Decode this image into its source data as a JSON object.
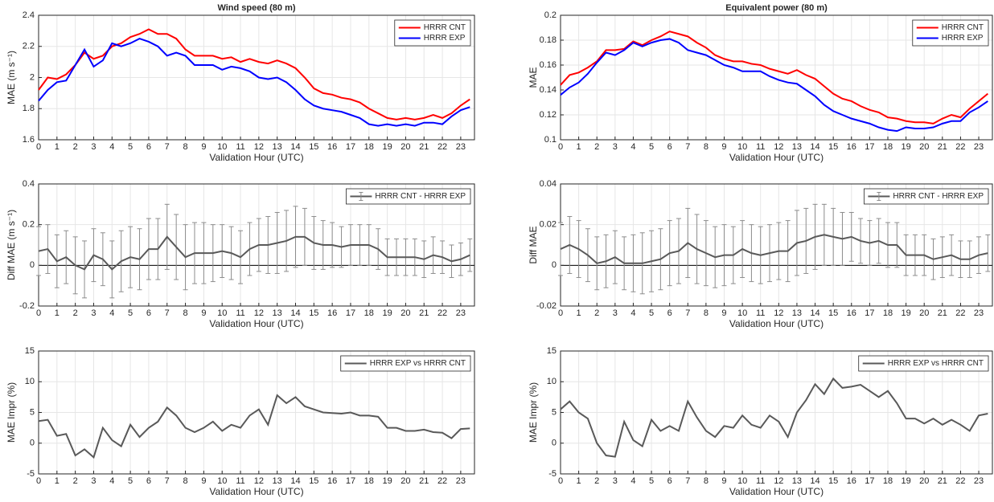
{
  "chart_data": [
    {
      "type": "line",
      "title": "Wind speed (80 m)",
      "x_label": "Validation Hour (UTC)",
      "y_label": "MAE (m s⁻¹)",
      "x": [
        0,
        0.5,
        1,
        1.5,
        2,
        2.5,
        3,
        3.5,
        4,
        4.5,
        5,
        5.5,
        6,
        6.5,
        7,
        7.5,
        8,
        8.5,
        9,
        9.5,
        10,
        10.5,
        11,
        11.5,
        12,
        12.5,
        13,
        13.5,
        14,
        14.5,
        15,
        15.5,
        16,
        16.5,
        17,
        17.5,
        18,
        18.5,
        19,
        19.5,
        20,
        20.5,
        21,
        21.5,
        22,
        22.5,
        23,
        23.5
      ],
      "series": [
        {
          "name": "HRRR CNT",
          "color": "#ff0000",
          "values": [
            1.92,
            2.0,
            1.99,
            2.02,
            2.08,
            2.16,
            2.12,
            2.14,
            2.2,
            2.22,
            2.26,
            2.28,
            2.31,
            2.28,
            2.28,
            2.25,
            2.18,
            2.14,
            2.14,
            2.14,
            2.12,
            2.13,
            2.1,
            2.12,
            2.1,
            2.09,
            2.11,
            2.09,
            2.06,
            2.0,
            1.93,
            1.9,
            1.89,
            1.87,
            1.86,
            1.84,
            1.8,
            1.77,
            1.74,
            1.73,
            1.74,
            1.73,
            1.74,
            1.76,
            1.74,
            1.77,
            1.82,
            1.86
          ]
        },
        {
          "name": "HRRR EXP",
          "color": "#0000ff",
          "values": [
            1.85,
            1.92,
            1.97,
            1.98,
            2.08,
            2.18,
            2.07,
            2.11,
            2.22,
            2.2,
            2.22,
            2.25,
            2.23,
            2.2,
            2.14,
            2.16,
            2.14,
            2.08,
            2.08,
            2.08,
            2.05,
            2.07,
            2.06,
            2.04,
            2.0,
            1.99,
            2.0,
            1.97,
            1.92,
            1.86,
            1.82,
            1.8,
            1.79,
            1.78,
            1.76,
            1.74,
            1.7,
            1.69,
            1.7,
            1.69,
            1.7,
            1.69,
            1.71,
            1.71,
            1.7,
            1.75,
            1.79,
            1.81
          ]
        }
      ],
      "xlim": [
        0,
        23.75
      ],
      "xticks": [
        0,
        1,
        2,
        3,
        4,
        5,
        6,
        7,
        8,
        9,
        10,
        11,
        12,
        13,
        14,
        15,
        16,
        17,
        18,
        19,
        20,
        21,
        22,
        23
      ],
      "ylim": [
        1.6,
        2.4
      ],
      "yticks": [
        1.6,
        1.8,
        2,
        2.2,
        2.4
      ],
      "grid": true,
      "legend": "upper-right"
    },
    {
      "type": "line",
      "title": "Equivalent power (80 m)",
      "x_label": "Validation Hour (UTC)",
      "y_label": "MAE",
      "x": [
        0,
        0.5,
        1,
        1.5,
        2,
        2.5,
        3,
        3.5,
        4,
        4.5,
        5,
        5.5,
        6,
        6.5,
        7,
        7.5,
        8,
        8.5,
        9,
        9.5,
        10,
        10.5,
        11,
        11.5,
        12,
        12.5,
        13,
        13.5,
        14,
        14.5,
        15,
        15.5,
        16,
        16.5,
        17,
        17.5,
        18,
        18.5,
        19,
        19.5,
        20,
        20.5,
        21,
        21.5,
        22,
        22.5,
        23,
        23.5
      ],
      "series": [
        {
          "name": "HRRR CNT",
          "color": "#ff0000",
          "values": [
            0.144,
            0.152,
            0.154,
            0.158,
            0.163,
            0.172,
            0.172,
            0.173,
            0.179,
            0.176,
            0.18,
            0.183,
            0.187,
            0.185,
            0.183,
            0.178,
            0.174,
            0.168,
            0.165,
            0.163,
            0.163,
            0.161,
            0.16,
            0.157,
            0.155,
            0.153,
            0.156,
            0.152,
            0.149,
            0.143,
            0.137,
            0.133,
            0.131,
            0.127,
            0.124,
            0.122,
            0.118,
            0.117,
            0.115,
            0.114,
            0.114,
            0.113,
            0.117,
            0.12,
            0.118,
            0.125,
            0.131,
            0.137
          ]
        },
        {
          "name": "HRRR EXP",
          "color": "#0000ff",
          "values": [
            0.136,
            0.142,
            0.146,
            0.153,
            0.162,
            0.17,
            0.168,
            0.172,
            0.178,
            0.175,
            0.178,
            0.18,
            0.181,
            0.178,
            0.172,
            0.17,
            0.168,
            0.164,
            0.16,
            0.158,
            0.155,
            0.155,
            0.155,
            0.151,
            0.148,
            0.146,
            0.145,
            0.14,
            0.135,
            0.128,
            0.123,
            0.12,
            0.117,
            0.115,
            0.113,
            0.11,
            0.108,
            0.107,
            0.11,
            0.109,
            0.109,
            0.11,
            0.113,
            0.115,
            0.115,
            0.122,
            0.126,
            0.131
          ]
        }
      ],
      "xlim": [
        0,
        23.75
      ],
      "xticks": [
        0,
        1,
        2,
        3,
        4,
        5,
        6,
        7,
        8,
        9,
        10,
        11,
        12,
        13,
        14,
        15,
        16,
        17,
        18,
        19,
        20,
        21,
        22,
        23
      ],
      "ylim": [
        0.1,
        0.2
      ],
      "yticks": [
        0.1,
        0.12,
        0.14,
        0.16,
        0.18,
        0.2
      ],
      "grid": true,
      "legend": "upper-right"
    },
    {
      "type": "errorbar",
      "x_label": "Validation Hour (UTC)",
      "y_label": "Diff MAE (m s⁻¹)",
      "x": [
        0,
        0.5,
        1,
        1.5,
        2,
        2.5,
        3,
        3.5,
        4,
        4.5,
        5,
        5.5,
        6,
        6.5,
        7,
        7.5,
        8,
        8.5,
        9,
        9.5,
        10,
        10.5,
        11,
        11.5,
        12,
        12.5,
        13,
        13.5,
        14,
        14.5,
        15,
        15.5,
        16,
        16.5,
        17,
        17.5,
        18,
        18.5,
        19,
        19.5,
        20,
        20.5,
        21,
        21.5,
        22,
        22.5,
        23,
        23.5
      ],
      "series": [
        {
          "name": "HRRR CNT - HRRR EXP",
          "color": "#595959",
          "values": [
            0.07,
            0.08,
            0.02,
            0.04,
            0.0,
            -0.02,
            0.05,
            0.03,
            -0.02,
            0.02,
            0.04,
            0.03,
            0.08,
            0.08,
            0.14,
            0.09,
            0.04,
            0.06,
            0.06,
            0.06,
            0.07,
            0.06,
            0.04,
            0.08,
            0.1,
            0.1,
            0.11,
            0.12,
            0.14,
            0.14,
            0.11,
            0.1,
            0.1,
            0.09,
            0.1,
            0.1,
            0.1,
            0.08,
            0.04,
            0.04,
            0.04,
            0.04,
            0.03,
            0.05,
            0.04,
            0.02,
            0.03,
            0.05
          ],
          "errors": [
            0.12,
            0.12,
            0.13,
            0.13,
            0.14,
            0.14,
            0.13,
            0.13,
            0.14,
            0.15,
            0.15,
            0.15,
            0.15,
            0.15,
            0.16,
            0.16,
            0.16,
            0.15,
            0.15,
            0.14,
            0.13,
            0.13,
            0.13,
            0.13,
            0.13,
            0.14,
            0.15,
            0.15,
            0.15,
            0.14,
            0.13,
            0.12,
            0.11,
            0.1,
            0.1,
            0.1,
            0.1,
            0.1,
            0.09,
            0.09,
            0.09,
            0.09,
            0.09,
            0.09,
            0.08,
            0.08,
            0.08,
            0.08
          ]
        }
      ],
      "xlim": [
        0,
        23.75
      ],
      "xticks": [
        0,
        1,
        2,
        3,
        4,
        5,
        6,
        7,
        8,
        9,
        10,
        11,
        12,
        13,
        14,
        15,
        16,
        17,
        18,
        19,
        20,
        21,
        22,
        23
      ],
      "ylim": [
        -0.2,
        0.4
      ],
      "yticks": [
        -0.2,
        0,
        0.2,
        0.4
      ],
      "grid": true,
      "zero_line": true,
      "legend": "upper-right"
    },
    {
      "type": "errorbar",
      "x_label": "Validation Hour (UTC)",
      "y_label": "Diff MAE",
      "x": [
        0,
        0.5,
        1,
        1.5,
        2,
        2.5,
        3,
        3.5,
        4,
        4.5,
        5,
        5.5,
        6,
        6.5,
        7,
        7.5,
        8,
        8.5,
        9,
        9.5,
        10,
        10.5,
        11,
        11.5,
        12,
        12.5,
        13,
        13.5,
        14,
        14.5,
        15,
        15.5,
        16,
        16.5,
        17,
        17.5,
        18,
        18.5,
        19,
        19.5,
        20,
        20.5,
        21,
        21.5,
        22,
        22.5,
        23,
        23.5
      ],
      "series": [
        {
          "name": "HRRR CNT - HRRR EXP",
          "color": "#595959",
          "values": [
            0.008,
            0.01,
            0.008,
            0.005,
            0.001,
            0.002,
            0.004,
            0.001,
            0.001,
            0.001,
            0.002,
            0.003,
            0.006,
            0.007,
            0.011,
            0.008,
            0.006,
            0.004,
            0.005,
            0.005,
            0.008,
            0.006,
            0.005,
            0.006,
            0.007,
            0.007,
            0.011,
            0.012,
            0.014,
            0.015,
            0.014,
            0.013,
            0.014,
            0.012,
            0.011,
            0.012,
            0.01,
            0.01,
            0.005,
            0.005,
            0.005,
            0.003,
            0.004,
            0.005,
            0.003,
            0.003,
            0.005,
            0.006
          ],
          "errors": [
            0.013,
            0.014,
            0.014,
            0.013,
            0.013,
            0.013,
            0.013,
            0.013,
            0.014,
            0.015,
            0.015,
            0.015,
            0.016,
            0.016,
            0.017,
            0.017,
            0.016,
            0.015,
            0.015,
            0.014,
            0.014,
            0.014,
            0.014,
            0.014,
            0.014,
            0.015,
            0.016,
            0.016,
            0.016,
            0.015,
            0.014,
            0.013,
            0.012,
            0.011,
            0.011,
            0.011,
            0.011,
            0.011,
            0.01,
            0.01,
            0.01,
            0.01,
            0.01,
            0.01,
            0.009,
            0.009,
            0.009,
            0.009
          ]
        }
      ],
      "xlim": [
        0,
        23.75
      ],
      "xticks": [
        0,
        1,
        2,
        3,
        4,
        5,
        6,
        7,
        8,
        9,
        10,
        11,
        12,
        13,
        14,
        15,
        16,
        17,
        18,
        19,
        20,
        21,
        22,
        23
      ],
      "ylim": [
        -0.02,
        0.04
      ],
      "yticks": [
        -0.02,
        0,
        0.02,
        0.04
      ],
      "grid": true,
      "zero_line": true,
      "legend": "upper-right"
    },
    {
      "type": "line",
      "x_label": "Validation Hour (UTC)",
      "y_label": "MAE Impr (%)",
      "x": [
        0,
        0.5,
        1,
        1.5,
        2,
        2.5,
        3,
        3.5,
        4,
        4.5,
        5,
        5.5,
        6,
        6.5,
        7,
        7.5,
        8,
        8.5,
        9,
        9.5,
        10,
        10.5,
        11,
        11.5,
        12,
        12.5,
        13,
        13.5,
        14,
        14.5,
        15,
        15.5,
        16,
        16.5,
        17,
        17.5,
        18,
        18.5,
        19,
        19.5,
        20,
        20.5,
        21,
        21.5,
        22,
        22.5,
        23,
        23.5
      ],
      "series": [
        {
          "name": "HRRR EXP vs HRRR CNT",
          "color": "#595959",
          "values": [
            3.6,
            3.8,
            1.2,
            1.5,
            -2,
            -1,
            -2.3,
            2.5,
            0.5,
            -0.5,
            3,
            1,
            2.5,
            3.5,
            5.8,
            4.5,
            2.5,
            1.8,
            2.5,
            3.5,
            2,
            3,
            2.5,
            4.5,
            5.5,
            3,
            7.8,
            6.5,
            7.5,
            6,
            5.5,
            5,
            4.9,
            4.8,
            5,
            4.5,
            4.5,
            4.3,
            2.5,
            2.5,
            2,
            2,
            2.2,
            1.8,
            1.7,
            0.8,
            2.3,
            2.4
          ]
        }
      ],
      "xlim": [
        0,
        23.75
      ],
      "xticks": [
        0,
        1,
        2,
        3,
        4,
        5,
        6,
        7,
        8,
        9,
        10,
        11,
        12,
        13,
        14,
        15,
        16,
        17,
        18,
        19,
        20,
        21,
        22,
        23
      ],
      "ylim": [
        -5,
        15
      ],
      "yticks": [
        -5,
        0,
        5,
        10,
        15
      ],
      "grid": true,
      "legend": "upper-right"
    },
    {
      "type": "line",
      "x_label": "Validation Hour (UTC)",
      "y_label": "MAE Impr (%)",
      "x": [
        0,
        0.5,
        1,
        1.5,
        2,
        2.5,
        3,
        3.5,
        4,
        4.5,
        5,
        5.5,
        6,
        6.5,
        7,
        7.5,
        8,
        8.5,
        9,
        9.5,
        10,
        10.5,
        11,
        11.5,
        12,
        12.5,
        13,
        13.5,
        14,
        14.5,
        15,
        15.5,
        16,
        16.5,
        17,
        17.5,
        18,
        18.5,
        19,
        19.5,
        20,
        20.5,
        21,
        21.5,
        22,
        22.5,
        23,
        23.5
      ],
      "series": [
        {
          "name": "HRRR EXP vs HRRR CNT",
          "color": "#595959",
          "values": [
            5.5,
            6.8,
            5,
            4,
            0,
            -2,
            -2.2,
            3.5,
            0.5,
            -0.5,
            3.8,
            2,
            2.8,
            2,
            6.8,
            4.2,
            2,
            1,
            2.8,
            2.5,
            4.5,
            3,
            2.5,
            4.5,
            3.5,
            1,
            5,
            7,
            9.6,
            8,
            10.5,
            9,
            9.2,
            9.5,
            8.5,
            7.5,
            8.5,
            6.5,
            4,
            4,
            3.2,
            4,
            3,
            3.8,
            3,
            2,
            4.5,
            4.8
          ]
        }
      ],
      "xlim": [
        0,
        23.75
      ],
      "xticks": [
        0,
        1,
        2,
        3,
        4,
        5,
        6,
        7,
        8,
        9,
        10,
        11,
        12,
        13,
        14,
        15,
        16,
        17,
        18,
        19,
        20,
        21,
        22,
        23
      ],
      "ylim": [
        -5,
        15
      ],
      "yticks": [
        -5,
        0,
        5,
        10,
        15
      ],
      "grid": true,
      "legend": "upper-right"
    }
  ]
}
